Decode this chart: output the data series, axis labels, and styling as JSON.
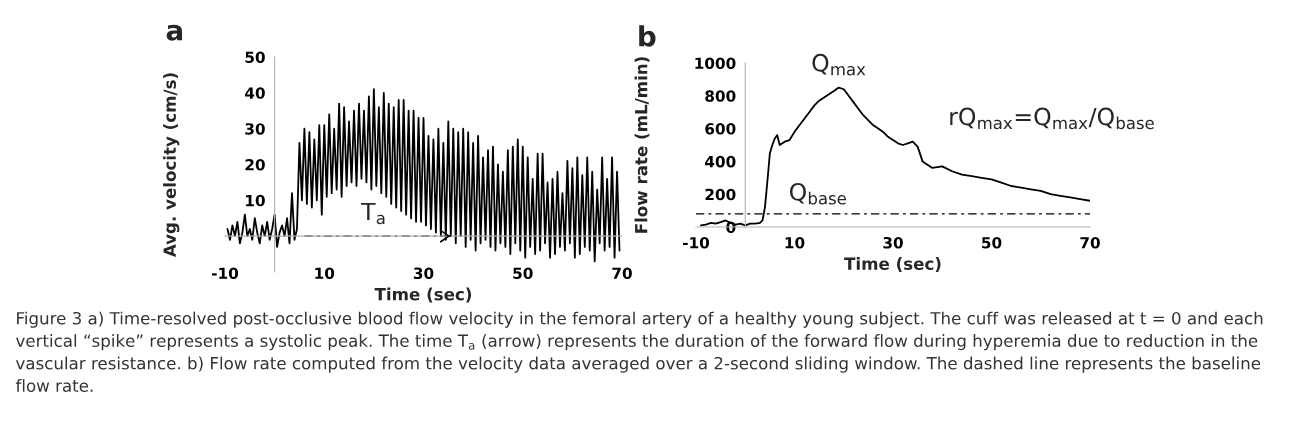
{
  "chart_data": [
    {
      "type": "line",
      "title": "a",
      "xlabel": "Time (sec)",
      "ylabel": "Avg. velocity (cm/s)",
      "xlim": [
        -10,
        70
      ],
      "xticks": [
        -10,
        10,
        30,
        50,
        70
      ],
      "ylim": [
        -10,
        50
      ],
      "yticks": [
        10,
        20,
        30,
        40,
        50
      ],
      "grid": false,
      "legend": false,
      "series": [
        {
          "color": "#000000",
          "x": [
            -9.5,
            -9,
            -8.5,
            -8,
            -7.5,
            -7,
            -6.5,
            -6,
            -5.5,
            -5,
            -4.5,
            -4,
            -3.5,
            -3,
            -2.5,
            -2,
            -1.5,
            -1,
            -0.5,
            0,
            0.5,
            1,
            1.5,
            2,
            2.5,
            3,
            3.5,
            4,
            4.5,
            5,
            5.5,
            6,
            6.5,
            7,
            7.5,
            8,
            8.5,
            9,
            9.5,
            10,
            10.5,
            11,
            11.5,
            12,
            12.5,
            13,
            13.5,
            14,
            14.5,
            15,
            15.5,
            16,
            16.5,
            17,
            17.5,
            18,
            18.5,
            19,
            19.5,
            20,
            20.5,
            21,
            21.5,
            22,
            22.5,
            23,
            23.5,
            24,
            24.5,
            25,
            25.5,
            26,
            26.5,
            27,
            27.5,
            28,
            28.5,
            29,
            29.5,
            30,
            30.5,
            31,
            31.5,
            32,
            32.5,
            33,
            33.5,
            34,
            34.5,
            35,
            35.5,
            36,
            36.5,
            37,
            37.5,
            38,
            38.5,
            39,
            39.5,
            40,
            40.5,
            41,
            41.5,
            42,
            42.5,
            43,
            43.5,
            44,
            44.5,
            45,
            45.5,
            46,
            46.5,
            47,
            47.5,
            48,
            48.5,
            49,
            49.5,
            50,
            50.5,
            51,
            51.5,
            52,
            52.5,
            53,
            53.5,
            54,
            54.5,
            55,
            55.5,
            56,
            56.5,
            57,
            57.5,
            58,
            58.5,
            59,
            59.5,
            60,
            60.5,
            61,
            61.5,
            62,
            62.5,
            63,
            63.5,
            64,
            64.5,
            65,
            65.5,
            66,
            66.5,
            67,
            67.5,
            68,
            68.5,
            69,
            69.5
          ],
          "values": [
            2,
            -1,
            3,
            0,
            4,
            -2,
            1,
            6,
            0,
            2,
            -1,
            5,
            1,
            -2,
            3,
            0,
            4,
            -1,
            2,
            6,
            -3,
            1,
            3,
            0,
            5,
            -2,
            12,
            -1,
            2,
            26,
            10,
            30,
            9,
            29,
            8,
            27,
            10,
            31,
            6,
            31,
            11,
            34,
            12,
            30,
            13,
            37,
            11,
            36,
            14,
            32,
            15,
            35,
            14,
            37,
            16,
            35,
            15,
            39,
            13,
            41,
            14,
            36,
            12,
            40,
            11,
            37,
            9,
            36,
            8,
            38,
            7,
            38,
            6,
            35,
            5,
            35,
            4,
            33,
            4,
            33,
            3,
            28,
            2,
            27,
            1,
            30,
            0,
            26,
            -1,
            32,
            0,
            30,
            -2,
            29,
            0,
            30,
            -3,
            29,
            -1,
            26,
            -4,
            28,
            -2,
            22,
            -1,
            24,
            -3,
            25,
            -4,
            20,
            -2,
            18,
            -3,
            24,
            -5,
            25,
            -2,
            27,
            -4,
            25,
            -6,
            22,
            -3,
            16,
            -5,
            23,
            -4,
            23,
            -2,
            15,
            -6,
            16,
            -5,
            18,
            -3,
            12,
            -4,
            21,
            -2,
            19,
            -6,
            22,
            -5,
            17,
            -3,
            22,
            -4,
            18,
            -7,
            13,
            -2,
            22,
            -4,
            16,
            -3,
            22,
            -6,
            18,
            -4
          ]
        },
        {
          "color": "#000000",
          "line_style": "dashed",
          "x": [
            6,
            36
          ],
          "values": [
            0,
            0
          ]
        }
      ],
      "annotations": [
        "Figure 3 a) Time-resolved post-occlusive blood flow velocity in the femoral artery of a healthy young subject. The cuff was released at t = 0 and each vertical “spike” represents a systolic peak. The time T$_{a}$ (arrow) represents the duration of the forward flow during hyperemia due to reduction in the vascular resistance. b) Flow rate computed from the velocity data averaged over a 2-second sliding window. The dashed line represents the baseline flow rate.",
        {
          "text": "T$_{a}$",
          "x": 20,
          "y": 0
        }
      ]
    },
    {
      "type": "line",
      "title": "b",
      "xlabel": "Time (sec)",
      "ylabel": "Flow rate (mL/min)",
      "xlim": [
        -10,
        70
      ],
      "xticks": [
        -10,
        10,
        30,
        50,
        70
      ],
      "ylim": [
        0,
        1000
      ],
      "yticks": [
        0,
        200,
        400,
        600,
        800,
        1000
      ],
      "grid": false,
      "legend": false,
      "series": [
        {
          "color": "#000000",
          "x": [
            -9,
            -8,
            -7,
            -6,
            -5,
            -4,
            -3,
            -2,
            -1,
            0,
            1,
            2,
            3,
            3.5,
            4,
            4.5,
            5,
            5.5,
            6,
            6.5,
            7,
            8,
            9,
            10,
            11,
            12,
            13,
            14,
            15,
            16,
            17,
            18,
            19,
            20,
            21,
            22,
            23,
            24,
            25,
            26,
            27,
            28,
            29,
            30,
            31,
            32,
            33,
            34,
            35,
            36,
            37,
            38,
            40,
            42,
            44,
            46,
            48,
            50,
            52,
            54,
            56,
            58,
            60,
            62,
            64,
            66,
            68,
            70
          ],
          "values": [
            10,
            15,
            25,
            20,
            30,
            40,
            25,
            15,
            20,
            10,
            20,
            20,
            25,
            40,
            120,
            280,
            450,
            500,
            540,
            560,
            500,
            520,
            530,
            580,
            620,
            660,
            700,
            740,
            770,
            790,
            810,
            830,
            850,
            840,
            800,
            760,
            720,
            680,
            650,
            620,
            600,
            580,
            550,
            530,
            510,
            500,
            510,
            520,
            490,
            400,
            380,
            360,
            370,
            340,
            320,
            310,
            300,
            290,
            270,
            250,
            240,
            230,
            220,
            200,
            190,
            180,
            170,
            160
          ]
        }
      ],
      "ref_lines": [
        {
          "axis": "y",
          "value": 80,
          "label": "Q$_{base}$",
          "color": "#000000",
          "line_style": "dashed"
        }
      ],
      "annotations": [
        {
          "text": "Q$_{max}$",
          "x": 19,
          "y": 850
        },
        "rQ$_{max}$=Q$_{max}$/Q$_{base}$"
      ]
    }
  ]
}
